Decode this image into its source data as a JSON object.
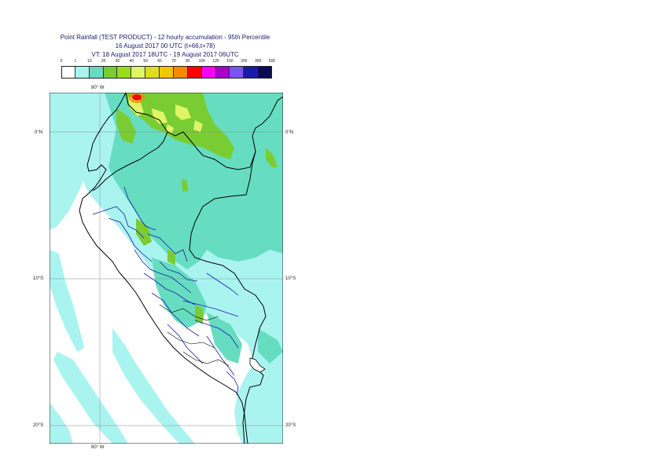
{
  "header": {
    "title_line1": "Point Rainfall (TEST PRODUCT) - 12 hourly accumulation - 95th Percentile",
    "title_line2": "16 August 2017 00 UTC (t+66,t+78)",
    "title_line3": "VT: 18 August 2017 18UTC - 19 August 2017 06UTC"
  },
  "legend": {
    "thresholds": [
      "0",
      "1",
      "10",
      "20",
      "30",
      "40",
      "50",
      "60",
      "70",
      "80",
      "100",
      "125",
      "150",
      "200",
      "300",
      "500"
    ],
    "colors": [
      "#ffffff",
      "#aaf4f0",
      "#66ddc0",
      "#7acc33",
      "#99dd1a",
      "#ddf566",
      "#dddd22",
      "#f0c800",
      "#ff8800",
      "#ff0000",
      "#ff00ff",
      "#aa00cc",
      "#7755ee",
      "#1a1aa8",
      "#0a0a55"
    ]
  },
  "axes": {
    "lon_top": "80° W",
    "lon_bottom": "80° W",
    "lat_left": [
      "0°N",
      "10°S",
      "20°S"
    ],
    "lat_right": [
      "0°N",
      "10°S",
      "20°S"
    ]
  },
  "map": {
    "region": "Peru",
    "colors": {
      "sea_light": "#aaf4f0",
      "land_mid": "#66ddc0",
      "green": "#7acc33",
      "yellow": "#ddf566",
      "red": "#ff0000",
      "border": "#000000",
      "admin": "#1a1ab0",
      "grid": "#888888"
    }
  }
}
